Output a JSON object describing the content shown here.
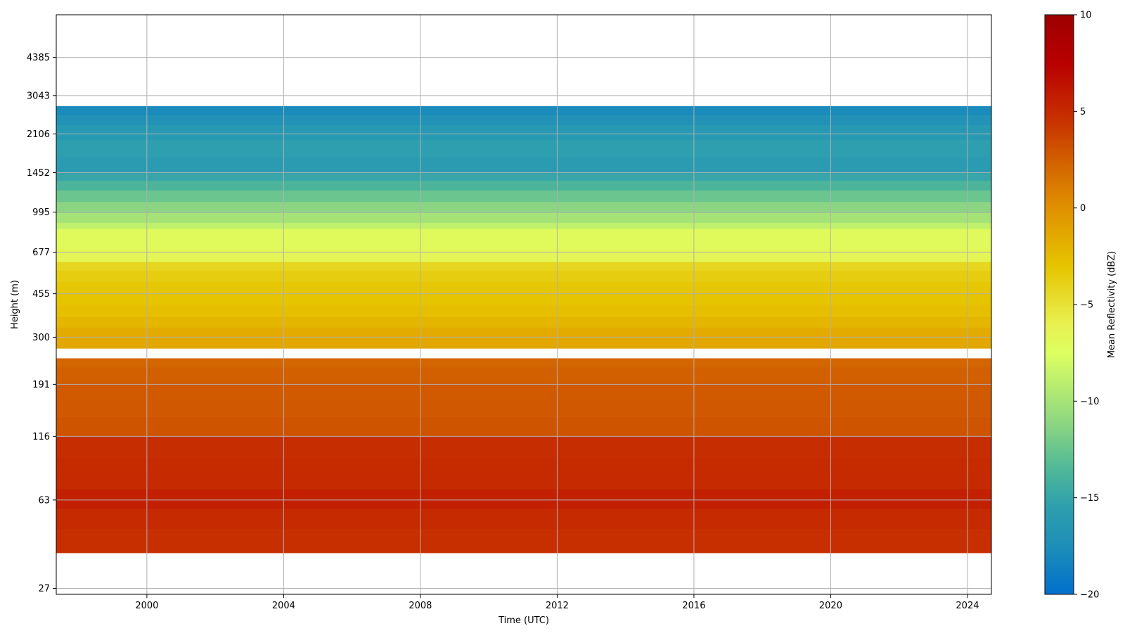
{
  "chart_data": {
    "type": "heatmap",
    "title": "",
    "xlabel": "Time (UTC)",
    "ylabel": "Height (m)",
    "x_ticks": [
      "2000",
      "2004",
      "2008",
      "2012",
      "2016",
      "2020",
      "2024"
    ],
    "x_tick_values": [
      2000,
      2004,
      2008,
      2012,
      2016,
      2020,
      2024
    ],
    "xlim": [
      1997.35,
      2024.7
    ],
    "y_ticks": [
      "27",
      "63",
      "116",
      "191",
      "300",
      "455",
      "677",
      "995",
      "1452",
      "2106",
      "3043",
      "4385"
    ],
    "y_scale": "log",
    "ylim": [
      25.5,
      6600
    ],
    "grid": true,
    "colorbar": {
      "label": "Mean Reflectivity (dBZ)",
      "range": [
        -20,
        10
      ],
      "ticks": [
        "10",
        "5",
        "0",
        "−5",
        "−10",
        "−15",
        "−20"
      ],
      "tick_values": [
        10,
        5,
        0,
        -5,
        -10,
        -15,
        -20
      ],
      "colors": [
        "#0070cc",
        "#1e8fb8",
        "#2e9fae",
        "#50b898",
        "#90d880",
        "#ddff60",
        "#e8f050",
        "#e5c400",
        "#e09000",
        "#d46a00",
        "#c83200",
        "#b80000",
        "#9e0000"
      ],
      "color_stops": [
        -20,
        -17.5,
        -15.5,
        -13.5,
        -11,
        -7.5,
        -6,
        -3,
        0,
        2,
        4.5,
        7.5,
        10
      ]
    },
    "layers": [
      {
        "bottom": 38,
        "top": 48,
        "dbz": 4.7
      },
      {
        "bottom": 48,
        "top": 58,
        "dbz": 5.0
      },
      {
        "bottom": 58,
        "top": 70,
        "dbz": 5.6
      },
      {
        "bottom": 70,
        "top": 82,
        "dbz": 5.0
      },
      {
        "bottom": 82,
        "top": 95,
        "dbz": 4.9
      },
      {
        "bottom": 95,
        "top": 116,
        "dbz": 4.8
      },
      {
        "bottom": 116,
        "top": 140,
        "dbz": 3.0
      },
      {
        "bottom": 140,
        "top": 165,
        "dbz": 2.8
      },
      {
        "bottom": 165,
        "top": 195,
        "dbz": 2.7
      },
      {
        "bottom": 195,
        "top": 225,
        "dbz": 2.5
      },
      {
        "bottom": 225,
        "top": 245,
        "dbz": 2.2
      },
      {
        "bottom": 270,
        "top": 300,
        "dbz": -1.3
      },
      {
        "bottom": 300,
        "top": 330,
        "dbz": -1.5
      },
      {
        "bottom": 330,
        "top": 365,
        "dbz": -2.2
      },
      {
        "bottom": 365,
        "top": 410,
        "dbz": -2.7
      },
      {
        "bottom": 410,
        "top": 455,
        "dbz": -3.0
      },
      {
        "bottom": 455,
        "top": 510,
        "dbz": -3.2
      },
      {
        "bottom": 510,
        "top": 570,
        "dbz": -3.6
      },
      {
        "bottom": 570,
        "top": 620,
        "dbz": -4.2
      },
      {
        "bottom": 620,
        "top": 700,
        "dbz": -6.6
      },
      {
        "bottom": 700,
        "top": 850,
        "dbz": -7.0
      },
      {
        "bottom": 850,
        "top": 900,
        "dbz": -8.8
      },
      {
        "bottom": 900,
        "top": 990,
        "dbz": -10.0
      },
      {
        "bottom": 990,
        "top": 1100,
        "dbz": -11.2
      },
      {
        "bottom": 1100,
        "top": 1230,
        "dbz": -12.5
      },
      {
        "bottom": 1230,
        "top": 1350,
        "dbz": -13.8
      },
      {
        "bottom": 1350,
        "top": 1452,
        "dbz": -15.0
      },
      {
        "bottom": 1452,
        "top": 1700,
        "dbz": -16.0
      },
      {
        "bottom": 1700,
        "top": 2000,
        "dbz": -15.5
      },
      {
        "bottom": 2000,
        "top": 2300,
        "dbz": -16.3
      },
      {
        "bottom": 2300,
        "top": 2530,
        "dbz": -17.0
      },
      {
        "bottom": 2530,
        "top": 2750,
        "dbz": -17.8
      }
    ]
  }
}
